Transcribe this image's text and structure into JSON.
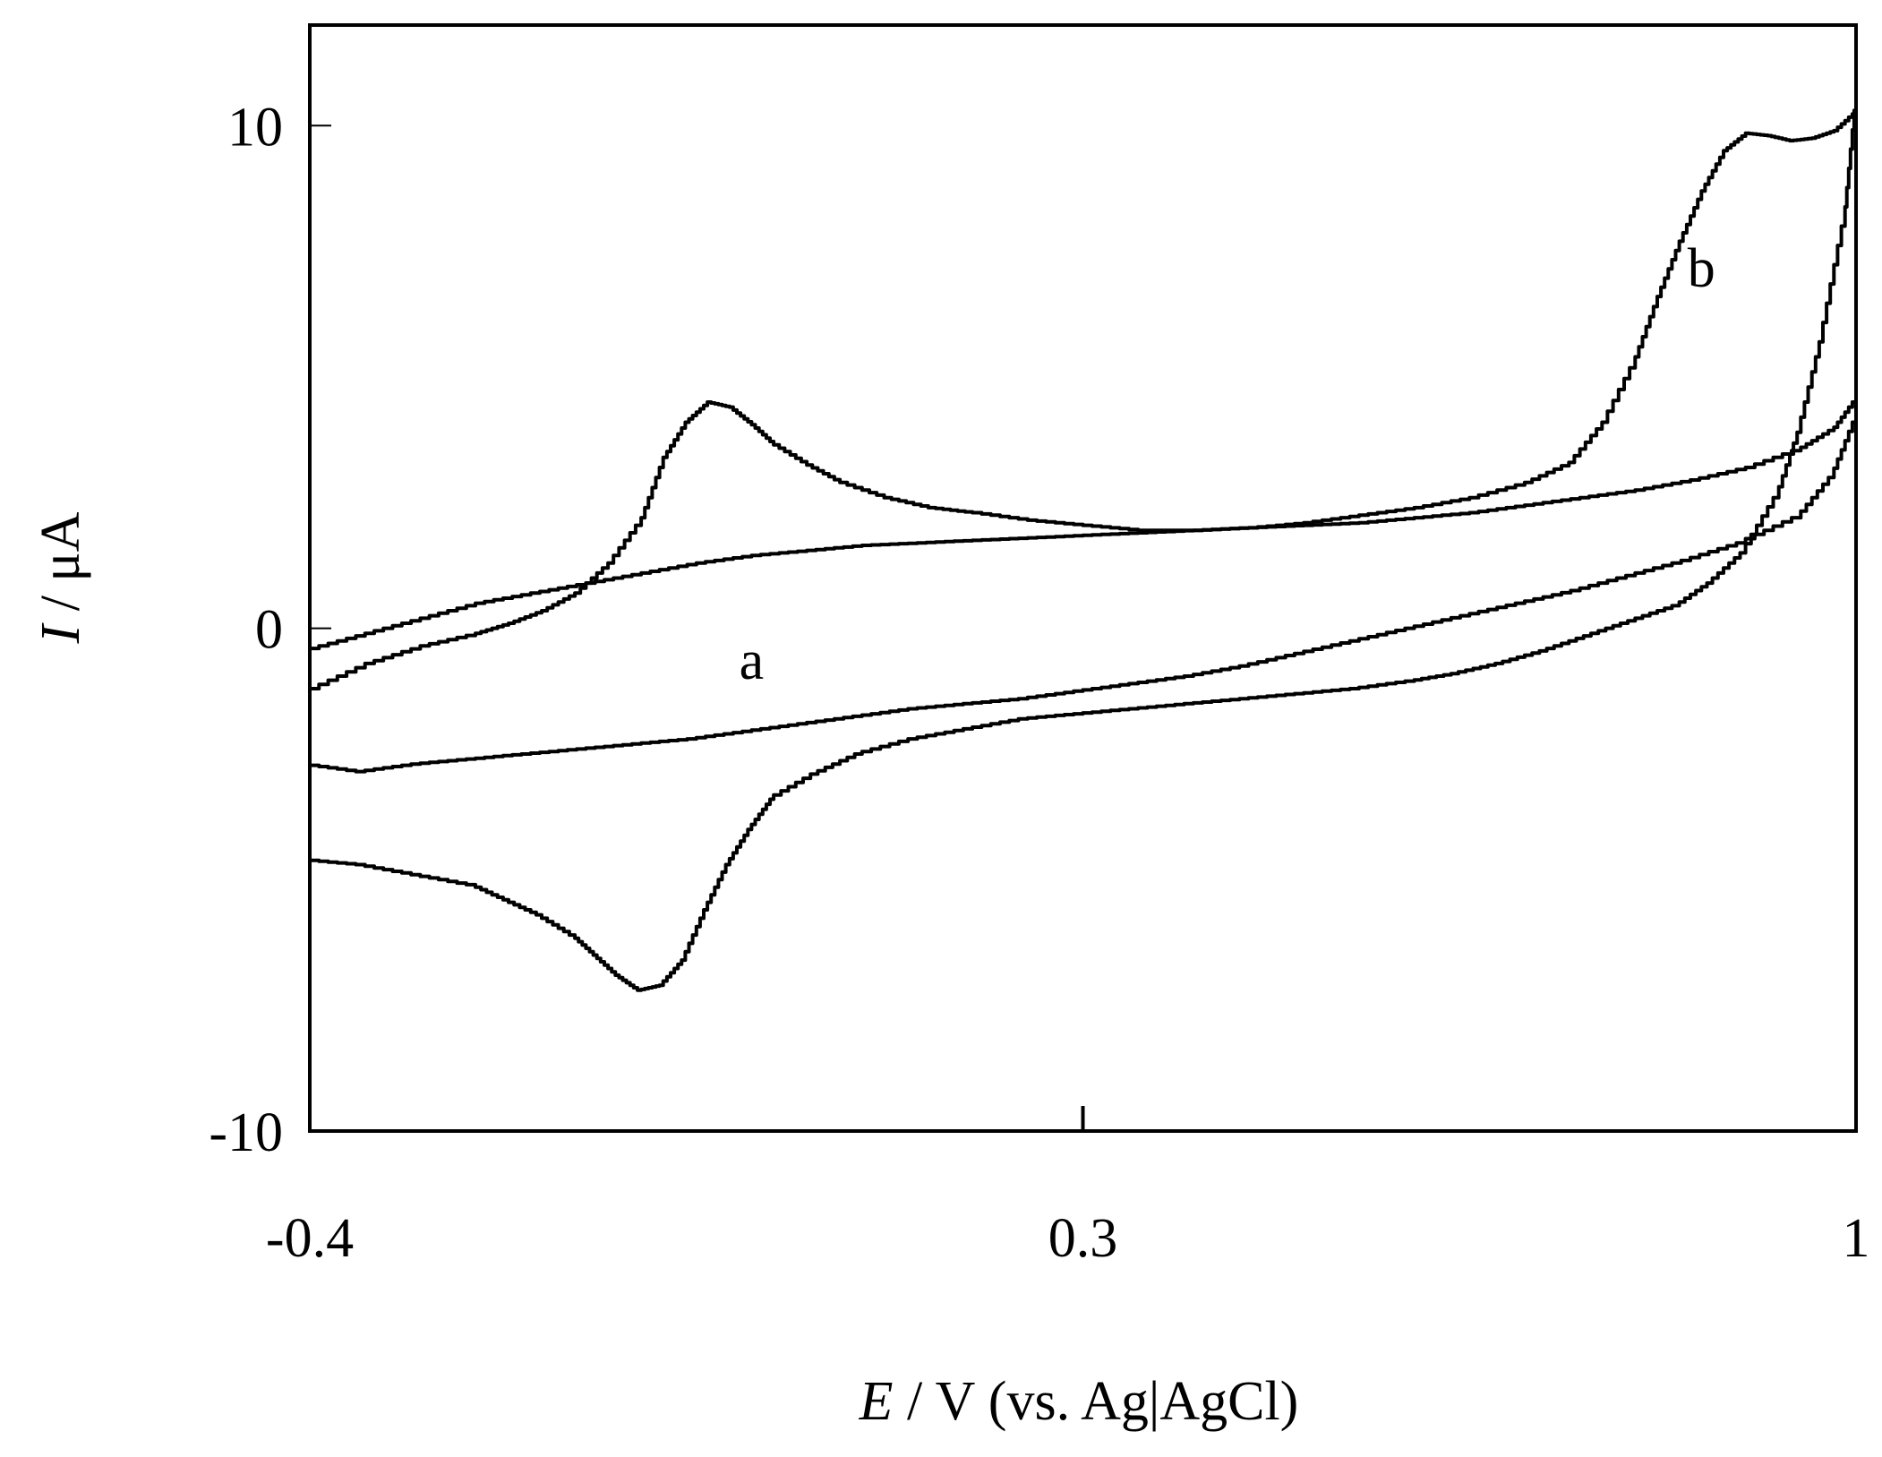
{
  "chart_data": {
    "type": "line",
    "title": "",
    "xlabel": {
      "symbol": "E",
      "rest": " / V (vs. Ag|AgCl)"
    },
    "ylabel": {
      "symbol": "I",
      "rest": " / μA"
    },
    "xlim": [
      -0.4,
      1.0
    ],
    "ylim": [
      -10,
      12
    ],
    "xticks": [
      {
        "value": -0.4,
        "label": "-0.4"
      },
      {
        "value": 0.3,
        "label": "0.3"
      },
      {
        "value": 1.0,
        "label": "1"
      }
    ],
    "yticks": [
      {
        "value": 10,
        "label": "10"
      },
      {
        "value": 0,
        "label": "0"
      },
      {
        "value": -10,
        "label": "-10"
      }
    ],
    "grid": false,
    "series": [
      {
        "name": "a",
        "label_at": {
          "x": 0.0,
          "y": -1.0
        },
        "x": [
          -0.4,
          -0.35,
          -0.3,
          -0.25,
          -0.2,
          -0.15,
          -0.1,
          -0.05,
          0.0,
          0.05,
          0.1,
          0.15,
          0.2,
          0.25,
          0.3,
          0.35,
          0.4,
          0.45,
          0.5,
          0.55,
          0.6,
          0.65,
          0.7,
          0.75,
          0.8,
          0.85,
          0.9,
          0.95,
          0.98,
          1.0,
          1.0,
          0.98,
          0.95,
          0.9,
          0.85,
          0.8,
          0.75,
          0.7,
          0.65,
          0.6,
          0.55,
          0.5,
          0.45,
          0.4,
          0.35,
          0.3,
          0.25,
          0.2,
          0.15,
          0.1,
          0.05,
          0.0,
          -0.05,
          -0.1,
          -0.15,
          -0.2,
          -0.25,
          -0.3,
          -0.35,
          -0.4
        ],
        "y": [
          -0.4,
          -0.1,
          0.2,
          0.5,
          0.7,
          0.9,
          1.1,
          1.3,
          1.45,
          1.55,
          1.65,
          1.7,
          1.75,
          1.8,
          1.85,
          1.9,
          1.95,
          2.0,
          2.05,
          2.1,
          2.2,
          2.3,
          2.45,
          2.6,
          2.75,
          2.95,
          3.2,
          3.6,
          4.0,
          4.6,
          4.1,
          3.0,
          2.2,
          1.7,
          1.35,
          1.05,
          0.75,
          0.5,
          0.25,
          0.0,
          -0.25,
          -0.5,
          -0.75,
          -0.95,
          -1.1,
          -1.25,
          -1.4,
          -1.5,
          -1.6,
          -1.75,
          -1.9,
          -2.05,
          -2.2,
          -2.3,
          -2.4,
          -2.5,
          -2.6,
          -2.7,
          -2.85,
          -2.7
        ]
      },
      {
        "name": "b",
        "label_at": {
          "x": 0.86,
          "y": 6.8
        },
        "x": [
          -0.4,
          -0.35,
          -0.3,
          -0.25,
          -0.22,
          -0.19,
          -0.16,
          -0.13,
          -0.1,
          -0.08,
          -0.06,
          -0.04,
          -0.02,
          0.0,
          0.02,
          0.05,
          0.08,
          0.12,
          0.16,
          0.2,
          0.25,
          0.3,
          0.35,
          0.4,
          0.45,
          0.5,
          0.55,
          0.6,
          0.65,
          0.7,
          0.74,
          0.77,
          0.8,
          0.82,
          0.84,
          0.86,
          0.88,
          0.9,
          0.92,
          0.94,
          0.96,
          0.98,
          1.0,
          0.99,
          0.97,
          0.95,
          0.93,
          0.9,
          0.87,
          0.84,
          0.8,
          0.76,
          0.72,
          0.68,
          0.64,
          0.6,
          0.55,
          0.5,
          0.45,
          0.4,
          0.35,
          0.3,
          0.25,
          0.2,
          0.15,
          0.1,
          0.06,
          0.02,
          0.0,
          -0.02,
          -0.04,
          -0.06,
          -0.08,
          -0.1,
          -0.12,
          -0.14,
          -0.16,
          -0.19,
          -0.22,
          -0.25,
          -0.3,
          -0.35,
          -0.4
        ],
        "y": [
          -1.2,
          -0.7,
          -0.35,
          -0.1,
          0.1,
          0.35,
          0.7,
          1.3,
          2.2,
          3.4,
          4.1,
          4.5,
          4.4,
          4.05,
          3.65,
          3.25,
          2.9,
          2.6,
          2.4,
          2.3,
          2.15,
          2.05,
          1.95,
          1.95,
          2.0,
          2.1,
          2.25,
          2.4,
          2.6,
          2.9,
          3.3,
          4.1,
          5.4,
          6.6,
          7.7,
          8.7,
          9.5,
          9.85,
          9.8,
          9.7,
          9.75,
          9.9,
          10.3,
          8.0,
          5.7,
          3.9,
          2.6,
          1.5,
          0.9,
          0.45,
          0.15,
          -0.15,
          -0.45,
          -0.7,
          -0.9,
          -1.05,
          -1.2,
          -1.3,
          -1.4,
          -1.5,
          -1.6,
          -1.7,
          -1.8,
          -2.0,
          -2.2,
          -2.5,
          -2.9,
          -3.4,
          -4.0,
          -4.7,
          -5.6,
          -6.6,
          -7.1,
          -7.2,
          -6.9,
          -6.5,
          -6.1,
          -5.7,
          -5.4,
          -5.1,
          -4.9,
          -4.7,
          -4.6
        ]
      }
    ]
  }
}
